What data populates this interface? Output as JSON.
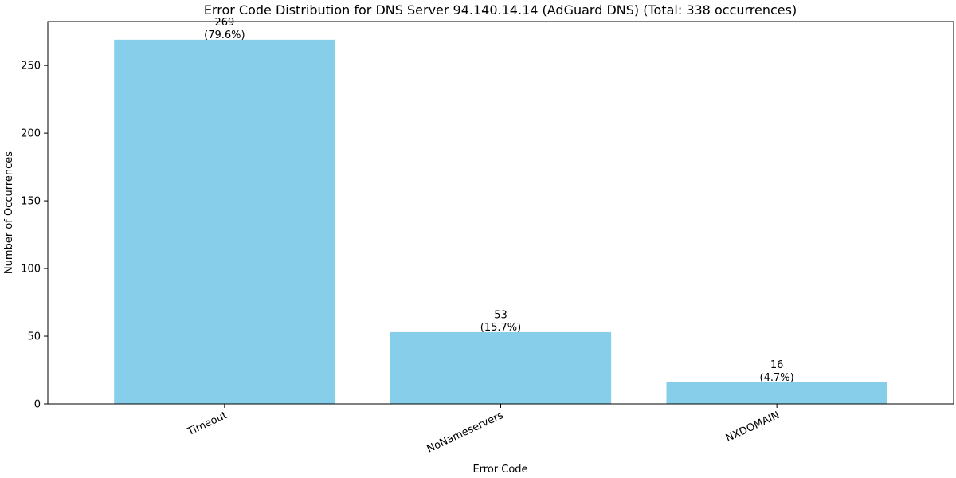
{
  "chart_data": {
    "type": "bar",
    "title": "Error Code Distribution for DNS Server 94.140.14.14 (AdGuard DNS) (Total: 338 occurrences)",
    "xlabel": "Error Code",
    "ylabel": "Number of Occurrences",
    "categories": [
      "Timeout",
      "NoNameservers",
      "NXDOMAIN"
    ],
    "values": [
      269,
      53,
      16
    ],
    "data_labels": [
      [
        "269",
        "(79.6%)"
      ],
      [
        "53",
        "(15.7%)"
      ],
      [
        "16",
        "(4.7%)"
      ]
    ],
    "yticks": [
      0,
      50,
      100,
      150,
      200,
      250
    ],
    "ylim": [
      0,
      282.45
    ],
    "bar_color": "#87CEEB",
    "grid": false,
    "x_tick_rotation_deg": 25
  }
}
